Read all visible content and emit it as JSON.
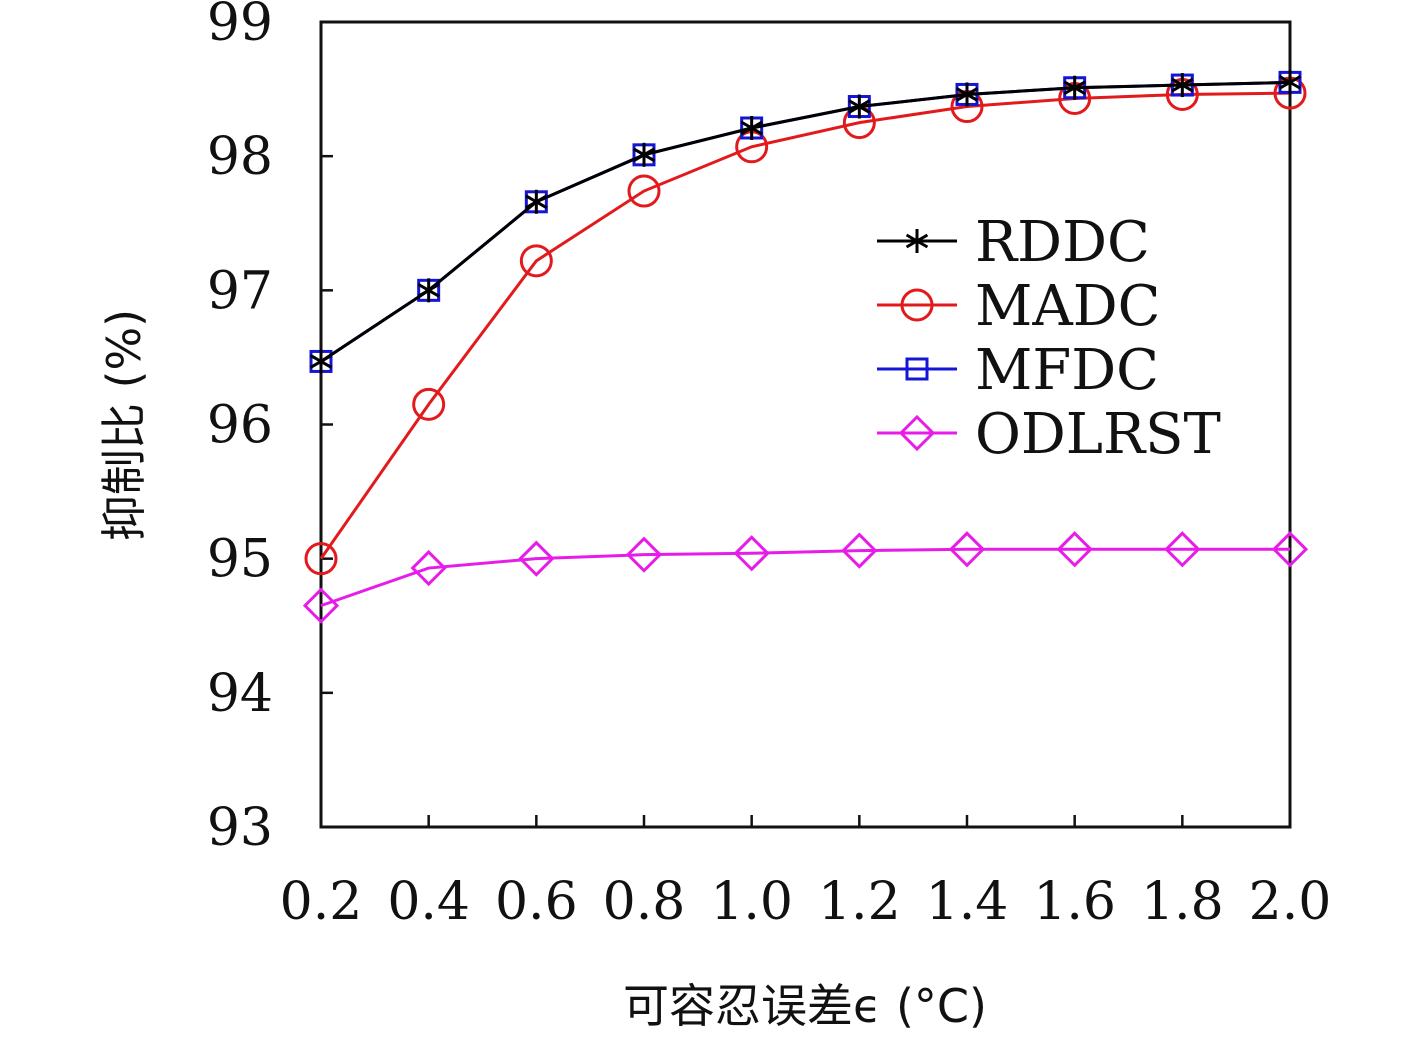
{
  "chart_data": {
    "type": "line",
    "xlabel": "可容忍误差ϵ (°C)",
    "ylabel": "抑制比 (%)",
    "x": [
      0.2,
      0.4,
      0.6,
      0.8,
      1.0,
      1.2,
      1.4,
      1.6,
      1.8,
      2.0
    ],
    "x_tick_labels": [
      "0.2",
      "0.4",
      "0.6",
      "0.8",
      "1.0",
      "1.2",
      "1.4",
      "1.6",
      "1.8",
      "2.0"
    ],
    "y_ticks": [
      93,
      94,
      95,
      96,
      97,
      98,
      99
    ],
    "y_tick_labels": [
      "93",
      "94",
      "95",
      "96",
      "97",
      "98",
      "99"
    ],
    "xlim": [
      0.2,
      2.0
    ],
    "ylim": [
      93,
      99
    ],
    "grid": false,
    "legend_position": "right",
    "series": [
      {
        "name": "RDDC",
        "color": "#000000",
        "marker": "asterisk",
        "values": [
          96.47,
          97.0,
          97.66,
          98.01,
          98.21,
          98.37,
          98.46,
          98.51,
          98.53,
          98.55
        ]
      },
      {
        "name": "MADC",
        "color": "#e31a1c",
        "marker": "circle",
        "values": [
          95.0,
          96.15,
          97.22,
          97.74,
          98.07,
          98.25,
          98.37,
          98.43,
          98.46,
          98.47
        ]
      },
      {
        "name": "MFDC",
        "color": "#1515d6",
        "marker": "square",
        "values": [
          96.47,
          97.0,
          97.66,
          98.01,
          98.21,
          98.37,
          98.46,
          98.51,
          98.53,
          98.55
        ]
      },
      {
        "name": "ODLRST",
        "color": "#e81ce8",
        "marker": "diamond",
        "values": [
          94.65,
          94.93,
          95.0,
          95.03,
          95.04,
          95.06,
          95.07,
          95.07,
          95.07,
          95.07
        ]
      }
    ]
  }
}
